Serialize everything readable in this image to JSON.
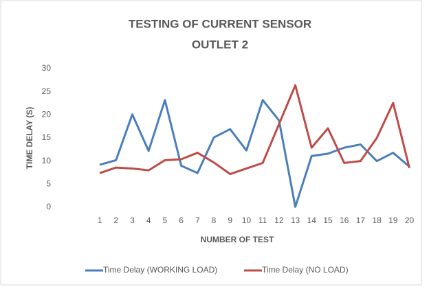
{
  "chart_data": {
    "type": "line",
    "title": "TESTING OF CURRENT SENSOR",
    "subtitle": "OUTLET 2",
    "xlabel": "NUMBER OF TEST",
    "ylabel": "TIME DELAY (S)",
    "x": [
      1,
      2,
      3,
      4,
      5,
      6,
      7,
      8,
      9,
      10,
      11,
      12,
      13,
      14,
      15,
      16,
      17,
      18,
      19,
      20
    ],
    "xlim": [
      -0.9,
      20.4
    ],
    "xticks": [
      1,
      2,
      3,
      4,
      5,
      6,
      7,
      8,
      9,
      10,
      11,
      12,
      13,
      14,
      15,
      16,
      17,
      18,
      19,
      20
    ],
    "ylim": [
      0,
      30
    ],
    "yticks": [
      0,
      5,
      10,
      15,
      20,
      25,
      30
    ],
    "grid": false,
    "legend": "bottom",
    "series": [
      {
        "name": "Time Delay (WORKING LOAD)",
        "color": "#4a7ebb",
        "values": [
          9.2,
          10.2,
          20.1,
          12.2,
          23.2,
          9,
          7.4,
          15.1,
          16.9,
          12.3,
          23.2,
          18.8,
          0.1,
          11.1,
          11.6,
          12.9,
          13.6,
          10,
          11.8,
          8.8
        ]
      },
      {
        "name": "Time Delay (NO LOAD)",
        "color": "#be4b48",
        "values": [
          7.4,
          8.6,
          8.4,
          8,
          10.2,
          10.4,
          11.8,
          9.7,
          7.2,
          8.4,
          9.6,
          18,
          26.4,
          12.9,
          17.1,
          9.6,
          10,
          15,
          22.6,
          8.5
        ]
      }
    ]
  }
}
